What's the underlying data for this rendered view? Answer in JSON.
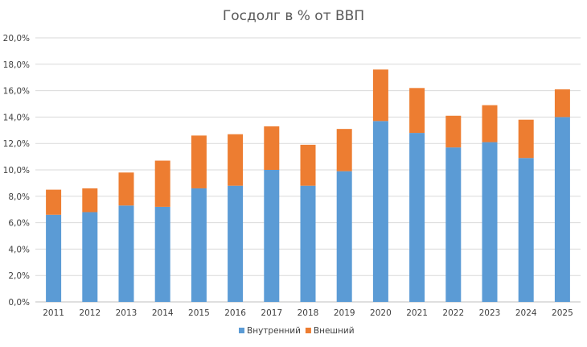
{
  "chart_data": {
    "type": "bar",
    "stacked": true,
    "title": "Госдолг в % от ВВП",
    "xlabel": "",
    "ylabel": "",
    "categories": [
      "2011",
      "2012",
      "2013",
      "2014",
      "2015",
      "2016",
      "2017",
      "2018",
      "2019",
      "2020",
      "2021",
      "2022",
      "2023",
      "2024",
      "2025"
    ],
    "series": [
      {
        "name": "Внутренний",
        "color": "#5b9bd5",
        "values": [
          6.6,
          6.8,
          7.3,
          7.2,
          8.6,
          8.8,
          10.0,
          8.8,
          9.9,
          13.7,
          12.8,
          11.7,
          12.1,
          10.9,
          14.0
        ]
      },
      {
        "name": "Внешний",
        "color": "#ed7d31",
        "values": [
          1.9,
          1.8,
          2.5,
          3.5,
          4.0,
          3.9,
          3.3,
          3.1,
          3.2,
          3.9,
          3.4,
          2.4,
          2.8,
          2.9,
          2.1
        ]
      }
    ],
    "ylim": [
      0,
      20
    ],
    "yticks": [
      "0,0%",
      "2,0%",
      "4,0%",
      "6,0%",
      "8,0%",
      "10,0%",
      "12,0%",
      "14,0%",
      "16,0%",
      "18,0%",
      "20,0%"
    ],
    "grid": true,
    "legend": "bottom"
  }
}
